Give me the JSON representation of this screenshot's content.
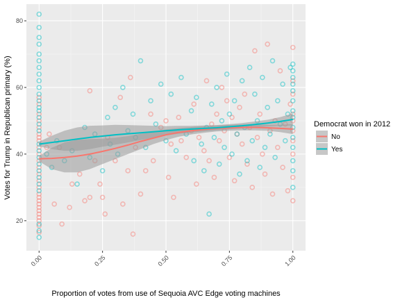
{
  "chart_data": {
    "type": "scatter",
    "xlabel": "Proportion of votes from use of Sequoia AVC Edge voting machines",
    "ylabel": "Votes for Trump in Republican primary (%)",
    "xlim": [
      -0.05,
      1.05
    ],
    "ylim": [
      11,
      85
    ],
    "x_ticks": [
      0,
      0.25,
      0.5,
      0.75,
      1
    ],
    "x_tick_labels": [
      "0.00",
      "0.25",
      "0.50",
      "0.75",
      "1.00"
    ],
    "y_ticks": [
      20,
      40,
      60,
      80
    ],
    "y_tick_labels": [
      "20",
      "40",
      "60",
      "80"
    ],
    "grid": true,
    "legend": {
      "title": "Democrat won in 2012",
      "placement": "right",
      "entries": [
        {
          "label": "No",
          "color": "#F8766D"
        },
        {
          "label": "Yes",
          "color": "#00BFC4"
        }
      ]
    },
    "series": [
      {
        "name": "No",
        "color": "#F8766D",
        "points": [
          [
            0,
            16.5
          ],
          [
            0,
            18.5
          ],
          [
            0,
            20
          ],
          [
            0,
            21
          ],
          [
            0,
            22
          ],
          [
            0,
            23
          ],
          [
            0,
            24
          ],
          [
            0,
            25
          ],
          [
            0,
            26
          ],
          [
            0,
            27
          ],
          [
            0,
            28
          ],
          [
            0,
            30
          ],
          [
            0,
            32
          ],
          [
            0,
            34
          ],
          [
            0,
            36
          ],
          [
            0,
            38
          ],
          [
            0,
            40
          ],
          [
            0,
            42
          ],
          [
            0,
            44
          ],
          [
            0,
            45
          ],
          [
            0,
            46
          ],
          [
            0,
            48
          ],
          [
            0,
            50
          ],
          [
            0,
            52
          ],
          [
            0,
            55
          ],
          [
            0,
            57
          ],
          [
            0.03,
            42
          ],
          [
            0.04,
            46
          ],
          [
            0.06,
            25
          ],
          [
            0.08,
            42
          ],
          [
            0.09,
            19
          ],
          [
            0.12,
            24
          ],
          [
            0.13,
            31
          ],
          [
            0.16,
            34
          ],
          [
            0.18,
            26
          ],
          [
            0.2,
            27
          ],
          [
            0.2,
            59
          ],
          [
            0.22,
            38
          ],
          [
            0.24,
            31
          ],
          [
            0.25,
            27
          ],
          [
            0.26,
            22
          ],
          [
            0.27,
            45
          ],
          [
            0.3,
            38
          ],
          [
            0.32,
            57
          ],
          [
            0.33,
            25
          ],
          [
            0.35,
            35
          ],
          [
            0.36,
            63
          ],
          [
            0.37,
            16
          ],
          [
            0.38,
            42
          ],
          [
            0.4,
            28
          ],
          [
            0.42,
            35
          ],
          [
            0.44,
            52
          ],
          [
            0.45,
            38
          ],
          [
            0.48,
            48
          ],
          [
            0.5,
            50
          ],
          [
            0.51,
            33
          ],
          [
            0.52,
            43
          ],
          [
            0.53,
            27
          ],
          [
            0.55,
            51
          ],
          [
            0.56,
            44
          ],
          [
            0.58,
            39
          ],
          [
            0.6,
            47
          ],
          [
            0.61,
            55
          ],
          [
            0.62,
            31
          ],
          [
            0.63,
            45
          ],
          [
            0.65,
            41
          ],
          [
            0.66,
            62
          ],
          [
            0.67,
            38
          ],
          [
            0.68,
            49
          ],
          [
            0.69,
            33
          ],
          [
            0.7,
            52
          ],
          [
            0.71,
            44
          ],
          [
            0.72,
            60
          ],
          [
            0.73,
            47
          ],
          [
            0.74,
            56
          ],
          [
            0.75,
            39
          ],
          [
            0.76,
            51
          ],
          [
            0.77,
            32
          ],
          [
            0.78,
            46
          ],
          [
            0.79,
            54
          ],
          [
            0.8,
            43
          ],
          [
            0.81,
            58
          ],
          [
            0.82,
            37
          ],
          [
            0.83,
            48
          ],
          [
            0.84,
            30
          ],
          [
            0.85,
            71
          ],
          [
            0.86,
            45
          ],
          [
            0.87,
            52
          ],
          [
            0.88,
            40
          ],
          [
            0.89,
            34
          ],
          [
            0.9,
            73
          ],
          [
            0.91,
            47
          ],
          [
            0.92,
            28
          ],
          [
            0.93,
            50
          ],
          [
            0.94,
            42
          ],
          [
            0.95,
            65
          ],
          [
            0.96,
            36
          ],
          [
            0.97,
            49
          ],
          [
            0.98,
            29
          ],
          [
            0.99,
            55
          ],
          [
            1,
            26
          ],
          [
            1,
            33
          ],
          [
            1,
            40
          ],
          [
            1,
            44
          ],
          [
            1,
            47
          ],
          [
            1,
            50
          ],
          [
            1,
            52
          ],
          [
            1,
            58
          ],
          [
            1,
            62
          ],
          [
            1,
            72
          ]
        ],
        "smooth": {
          "x": [
            0,
            0.05,
            0.1,
            0.15,
            0.2,
            0.25,
            0.3,
            0.35,
            0.4,
            0.45,
            0.5,
            0.55,
            0.6,
            0.65,
            0.7,
            0.75,
            0.8,
            0.85,
            0.9,
            0.95,
            1
          ],
          "y": [
            38.6,
            38.7,
            39.0,
            39.4,
            40.0,
            40.8,
            41.7,
            42.7,
            43.8,
            44.8,
            45.8,
            46.5,
            47.0,
            47.4,
            47.7,
            47.9,
            48.0,
            48.0,
            47.9,
            47.7,
            47.5
          ],
          "lo": [
            37.8,
            35.5,
            34.5,
            34.5,
            35.5,
            37.0,
            38.5,
            40.0,
            41.5,
            43.0,
            44.2,
            45.2,
            45.9,
            46.4,
            46.8,
            47.0,
            47.1,
            47.1,
            47.0,
            46.6,
            46.0
          ],
          "hi": [
            39.4,
            41.9,
            43.5,
            44.3,
            44.5,
            44.6,
            44.9,
            45.4,
            46.1,
            46.6,
            47.4,
            47.8,
            48.1,
            48.4,
            48.6,
            48.8,
            48.9,
            48.9,
            48.8,
            48.8,
            49.0
          ]
        }
      },
      {
        "name": "Yes",
        "color": "#00BFC4",
        "points": [
          [
            0,
            15
          ],
          [
            0,
            17
          ],
          [
            0,
            19
          ],
          [
            0,
            29
          ],
          [
            0,
            31
          ],
          [
            0,
            33
          ],
          [
            0,
            35
          ],
          [
            0,
            37
          ],
          [
            0,
            39
          ],
          [
            0,
            41
          ],
          [
            0,
            43
          ],
          [
            0,
            47
          ],
          [
            0,
            49
          ],
          [
            0,
            51
          ],
          [
            0,
            53
          ],
          [
            0,
            54
          ],
          [
            0,
            56
          ],
          [
            0,
            58
          ],
          [
            0,
            60
          ],
          [
            0,
            62
          ],
          [
            0,
            64
          ],
          [
            0,
            66
          ],
          [
            0,
            68
          ],
          [
            0,
            70
          ],
          [
            0,
            73
          ],
          [
            0,
            75
          ],
          [
            0,
            78
          ],
          [
            0,
            82
          ],
          [
            0.03,
            40
          ],
          [
            0.05,
            36
          ],
          [
            0.07,
            44
          ],
          [
            0.1,
            38
          ],
          [
            0.13,
            41
          ],
          [
            0.15,
            31
          ],
          [
            0.18,
            48
          ],
          [
            0.2,
            39
          ],
          [
            0.22,
            46
          ],
          [
            0.25,
            35
          ],
          [
            0.27,
            51
          ],
          [
            0.28,
            43
          ],
          [
            0.3,
            54
          ],
          [
            0.31,
            40
          ],
          [
            0.33,
            60
          ],
          [
            0.35,
            47
          ],
          [
            0.37,
            52
          ],
          [
            0.38,
            45
          ],
          [
            0.4,
            68
          ],
          [
            0.42,
            42
          ],
          [
            0.44,
            56
          ],
          [
            0.46,
            49
          ],
          [
            0.48,
            61
          ],
          [
            0.5,
            44
          ],
          [
            0.52,
            58
          ],
          [
            0.54,
            41
          ],
          [
            0.56,
            63
          ],
          [
            0.58,
            46
          ],
          [
            0.6,
            53
          ],
          [
            0.61,
            38
          ],
          [
            0.62,
            57
          ],
          [
            0.64,
            43
          ],
          [
            0.65,
            35
          ],
          [
            0.66,
            48
          ],
          [
            0.67,
            22
          ],
          [
            0.68,
            55
          ],
          [
            0.69,
            45
          ],
          [
            0.7,
            60
          ],
          [
            0.71,
            37
          ],
          [
            0.72,
            50
          ],
          [
            0.73,
            42
          ],
          [
            0.74,
            64
          ],
          [
            0.75,
            52
          ],
          [
            0.76,
            40
          ],
          [
            0.77,
            56
          ],
          [
            0.78,
            46
          ],
          [
            0.79,
            34
          ],
          [
            0.8,
            62
          ],
          [
            0.81,
            48
          ],
          [
            0.82,
            38
          ],
          [
            0.83,
            66
          ],
          [
            0.84,
            44
          ],
          [
            0.85,
            58
          ],
          [
            0.86,
            50
          ],
          [
            0.87,
            36
          ],
          [
            0.88,
            63
          ],
          [
            0.89,
            42
          ],
          [
            0.9,
            54
          ],
          [
            0.91,
            46
          ],
          [
            0.92,
            68
          ],
          [
            0.93,
            39
          ],
          [
            0.94,
            56
          ],
          [
            0.95,
            49
          ],
          [
            0.96,
            61
          ],
          [
            0.97,
            44
          ],
          [
            0.98,
            52
          ],
          [
            0.99,
            66
          ],
          [
            1,
            30
          ],
          [
            1,
            35
          ],
          [
            1,
            38
          ],
          [
            1,
            42
          ],
          [
            1,
            45
          ],
          [
            1,
            48
          ],
          [
            1,
            51
          ],
          [
            1,
            53
          ],
          [
            1,
            56
          ],
          [
            1,
            59
          ],
          [
            1,
            61
          ],
          [
            1,
            63
          ],
          [
            1,
            65
          ],
          [
            1,
            67
          ]
        ],
        "smooth": {
          "x": [
            0,
            0.05,
            0.1,
            0.15,
            0.2,
            0.25,
            0.3,
            0.35,
            0.4,
            0.45,
            0.5,
            0.55,
            0.6,
            0.65,
            0.7,
            0.75,
            0.8,
            0.85,
            0.9,
            0.95,
            1
          ],
          "y": [
            43.0,
            43.5,
            44.0,
            44.5,
            45.0,
            45.4,
            45.8,
            46.1,
            46.4,
            46.7,
            47.0,
            47.3,
            47.5,
            47.7,
            47.9,
            48.2,
            48.5,
            48.9,
            49.3,
            49.8,
            50.4
          ],
          "lo": [
            42.3,
            41.5,
            41.0,
            41.0,
            41.5,
            42.2,
            42.8,
            43.5,
            44.2,
            44.9,
            45.6,
            46.1,
            46.5,
            46.8,
            47.1,
            47.4,
            47.7,
            48.0,
            48.3,
            48.5,
            48.6
          ],
          "hi": [
            43.7,
            45.5,
            47.0,
            48.0,
            48.5,
            48.6,
            48.8,
            48.7,
            48.6,
            48.5,
            48.4,
            48.5,
            48.5,
            48.6,
            48.7,
            49.0,
            49.3,
            49.8,
            50.3,
            51.1,
            52.2
          ]
        }
      }
    ]
  }
}
